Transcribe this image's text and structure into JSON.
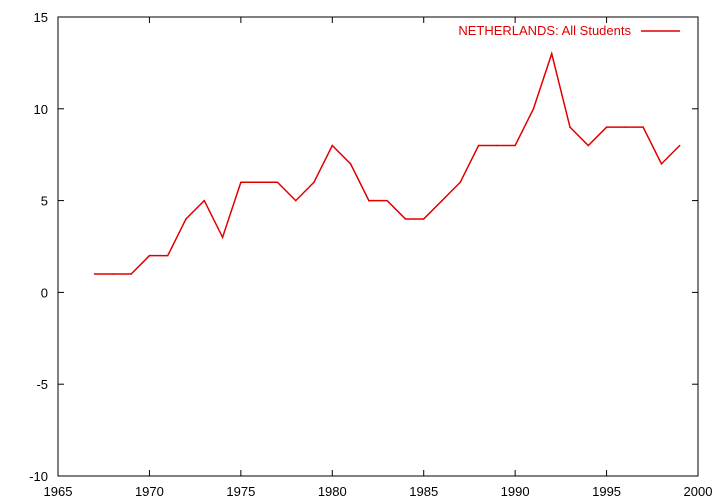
{
  "chart_data": {
    "type": "line",
    "title": "",
    "xlabel": "",
    "ylabel": "",
    "xlim": [
      1965,
      2000
    ],
    "ylim": [
      -10,
      15
    ],
    "xticks": [
      1965,
      1970,
      1975,
      1980,
      1985,
      1990,
      1995,
      2000
    ],
    "yticks": [
      -10,
      -5,
      0,
      5,
      10,
      15
    ],
    "grid": false,
    "legend_position": "top-right",
    "series": [
      {
        "name": "NETHERLANDS: All Students",
        "color": "#e00000",
        "x": [
          1967,
          1968,
          1969,
          1970,
          1971,
          1972,
          1973,
          1974,
          1975,
          1976,
          1977,
          1978,
          1979,
          1980,
          1981,
          1982,
          1983,
          1984,
          1985,
          1986,
          1987,
          1988,
          1989,
          1990,
          1991,
          1992,
          1993,
          1994,
          1995,
          1996,
          1997,
          1998,
          1999
        ],
        "y": [
          1,
          1,
          1,
          2,
          2,
          4,
          5,
          3,
          6,
          6,
          6,
          5,
          6,
          8,
          7,
          5,
          5,
          4,
          4,
          5,
          6,
          8,
          8,
          8,
          10,
          13,
          9,
          8,
          9,
          9,
          9,
          7,
          8
        ]
      }
    ]
  }
}
